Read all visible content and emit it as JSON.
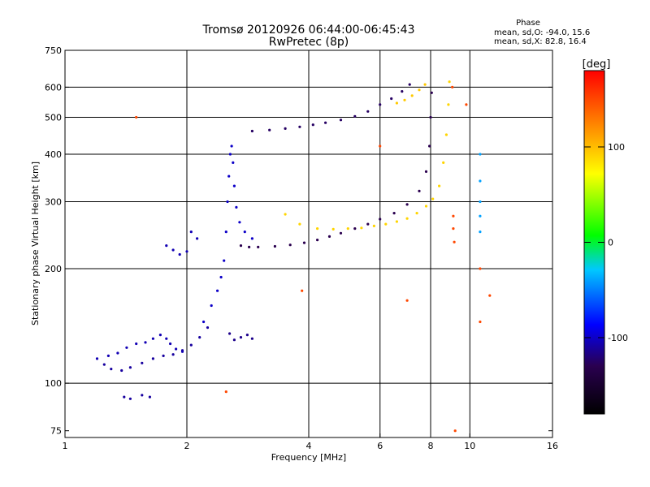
{
  "title_line1": "Tromsø 20120926 06:44:00-06:45:43",
  "title_line2": "RwPretec (8p)",
  "phase_legend": {
    "heading": "Phase",
    "line_o": "mean, sd,O: -94.0, 15.6",
    "line_x": "mean, sd,X:  82.8, 16.4"
  },
  "colorbar": {
    "label": "[deg]",
    "ticks": [
      {
        "value": 100,
        "label": "100"
      },
      {
        "value": 0,
        "label": "0"
      },
      {
        "value": -100,
        "label": "-100"
      }
    ],
    "range": [
      -180,
      180
    ]
  },
  "chart_data": {
    "type": "scatter",
    "title": "Tromsø 20120926 06:44:00-06:45:43",
    "subtitle": "RwPretec (8p)",
    "xlabel": "Frequency [MHz]",
    "ylabel": "Stationary phase Virtual Height [km]",
    "xscale": "log",
    "yscale": "log",
    "xlim": [
      1,
      16
    ],
    "ylim": [
      72,
      750
    ],
    "xticks": [
      {
        "v": 1,
        "l": "1"
      },
      {
        "v": 2,
        "l": "2"
      },
      {
        "v": 4,
        "l": "4"
      },
      {
        "v": 6,
        "l": "6"
      },
      {
        "v": 8,
        "l": "8"
      },
      {
        "v": 10,
        "l": "10"
      },
      {
        "v": 16,
        "l": "16"
      }
    ],
    "yticks": [
      {
        "v": 75,
        "l": "75"
      },
      {
        "v": 100,
        "l": "100"
      },
      {
        "v": 200,
        "l": "200"
      },
      {
        "v": 300,
        "l": "300"
      },
      {
        "v": 400,
        "l": "400"
      },
      {
        "v": 500,
        "l": "500"
      },
      {
        "v": 600,
        "l": "600"
      },
      {
        "v": 750,
        "l": "750"
      }
    ],
    "grid_x": [
      2,
      4,
      6,
      8,
      10
    ],
    "grid_y": [
      100,
      200,
      300,
      400,
      500,
      600
    ],
    "color_scale": "phase in degrees, -180 (black) to 180 (red)",
    "traces": [
      {
        "phase": -110,
        "points": [
          [
            1.25,
            112
          ],
          [
            1.3,
            109
          ],
          [
            1.38,
            108
          ],
          [
            1.45,
            110
          ],
          [
            1.55,
            113
          ],
          [
            1.65,
            116
          ],
          [
            1.75,
            118
          ],
          [
            1.85,
            119
          ],
          [
            1.95,
            122
          ],
          [
            2.05,
            126
          ],
          [
            2.15,
            132
          ],
          [
            2.25,
            140
          ]
        ]
      },
      {
        "phase": -105,
        "points": [
          [
            1.2,
            116
          ],
          [
            1.28,
            118
          ],
          [
            1.35,
            120
          ],
          [
            1.42,
            124
          ],
          [
            1.5,
            127
          ],
          [
            1.58,
            128
          ],
          [
            1.65,
            131
          ],
          [
            1.72,
            134
          ],
          [
            1.78,
            131
          ],
          [
            1.82,
            127
          ],
          [
            1.88,
            123
          ],
          [
            1.95,
            121
          ]
        ]
      },
      {
        "phase": -110,
        "points": [
          [
            1.4,
            92
          ],
          [
            1.45,
            91
          ],
          [
            1.55,
            93
          ],
          [
            1.62,
            92
          ]
        ]
      },
      {
        "phase": -105,
        "points": [
          [
            1.78,
            230
          ],
          [
            1.85,
            224
          ],
          [
            1.92,
            218
          ],
          [
            2.0,
            222
          ],
          [
            2.05,
            250
          ],
          [
            2.12,
            240
          ]
        ]
      },
      {
        "phase": -100,
        "points": [
          [
            2.2,
            145
          ],
          [
            2.3,
            160
          ],
          [
            2.38,
            175
          ],
          [
            2.43,
            190
          ],
          [
            2.47,
            210
          ],
          [
            2.5,
            250
          ],
          [
            2.52,
            300
          ],
          [
            2.54,
            350
          ],
          [
            2.56,
            400
          ],
          [
            2.58,
            420
          ],
          [
            2.6,
            380
          ],
          [
            2.62,
            330
          ],
          [
            2.65,
            290
          ],
          [
            2.7,
            265
          ],
          [
            2.78,
            250
          ],
          [
            2.9,
            240
          ]
        ]
      },
      {
        "phase": -115,
        "points": [
          [
            2.55,
            135
          ],
          [
            2.62,
            130
          ],
          [
            2.72,
            132
          ],
          [
            2.82,
            134
          ],
          [
            2.9,
            131
          ]
        ]
      },
      {
        "phase": -130,
        "points": [
          [
            2.72,
            230
          ],
          [
            2.85,
            228
          ],
          [
            3.0,
            228
          ],
          [
            3.3,
            229
          ],
          [
            3.6,
            231
          ],
          [
            3.9,
            234
          ],
          [
            4.2,
            238
          ],
          [
            4.5,
            243
          ],
          [
            4.8,
            248
          ],
          [
            5.2,
            255
          ],
          [
            5.6,
            262
          ],
          [
            6.0,
            270
          ],
          [
            6.5,
            280
          ],
          [
            7.0,
            295
          ],
          [
            7.5,
            320
          ],
          [
            7.8,
            360
          ],
          [
            7.95,
            420
          ],
          [
            8.0,
            500
          ],
          [
            8.05,
            580
          ]
        ]
      },
      {
        "phase": -125,
        "points": [
          [
            2.9,
            460
          ],
          [
            3.2,
            463
          ],
          [
            3.5,
            467
          ],
          [
            3.8,
            472
          ],
          [
            4.1,
            478
          ],
          [
            4.4,
            484
          ],
          [
            4.8,
            492
          ],
          [
            5.2,
            503
          ],
          [
            5.6,
            518
          ],
          [
            6.0,
            540
          ],
          [
            6.4,
            560
          ],
          [
            6.8,
            585
          ],
          [
            7.1,
            610
          ]
        ]
      },
      {
        "phase": 90,
        "points": [
          [
            3.5,
            278
          ],
          [
            3.8,
            262
          ],
          [
            4.2,
            255
          ],
          [
            4.6,
            254
          ],
          [
            5.0,
            255
          ],
          [
            5.4,
            256
          ],
          [
            5.8,
            259
          ],
          [
            6.2,
            262
          ],
          [
            6.6,
            266
          ],
          [
            7.0,
            271
          ],
          [
            7.4,
            280
          ],
          [
            7.8,
            292
          ],
          [
            8.1,
            305
          ],
          [
            8.4,
            330
          ],
          [
            8.6,
            380
          ],
          [
            8.75,
            450
          ],
          [
            8.85,
            540
          ],
          [
            8.9,
            620
          ]
        ]
      },
      {
        "phase": 95,
        "points": [
          [
            6.6,
            545
          ],
          [
            6.9,
            555
          ],
          [
            7.2,
            570
          ],
          [
            7.5,
            590
          ],
          [
            7.75,
            610
          ]
        ]
      },
      {
        "phase": -40,
        "points": [
          [
            10.6,
            400
          ],
          [
            10.6,
            340
          ],
          [
            10.6,
            300
          ],
          [
            10.6,
            275
          ],
          [
            10.6,
            250
          ]
        ]
      },
      {
        "phase": 150,
        "points": [
          [
            9.1,
            275
          ],
          [
            9.1,
            255
          ],
          [
            9.15,
            235
          ],
          [
            10.6,
            200
          ],
          [
            10.6,
            145
          ],
          [
            1.5,
            500
          ],
          [
            2.5,
            95
          ],
          [
            9.2,
            75
          ],
          [
            9.05,
            600
          ],
          [
            11.2,
            170
          ],
          [
            3.85,
            175
          ],
          [
            7.0,
            165
          ],
          [
            9.8,
            540
          ],
          [
            6.0,
            420
          ]
        ]
      }
    ]
  }
}
